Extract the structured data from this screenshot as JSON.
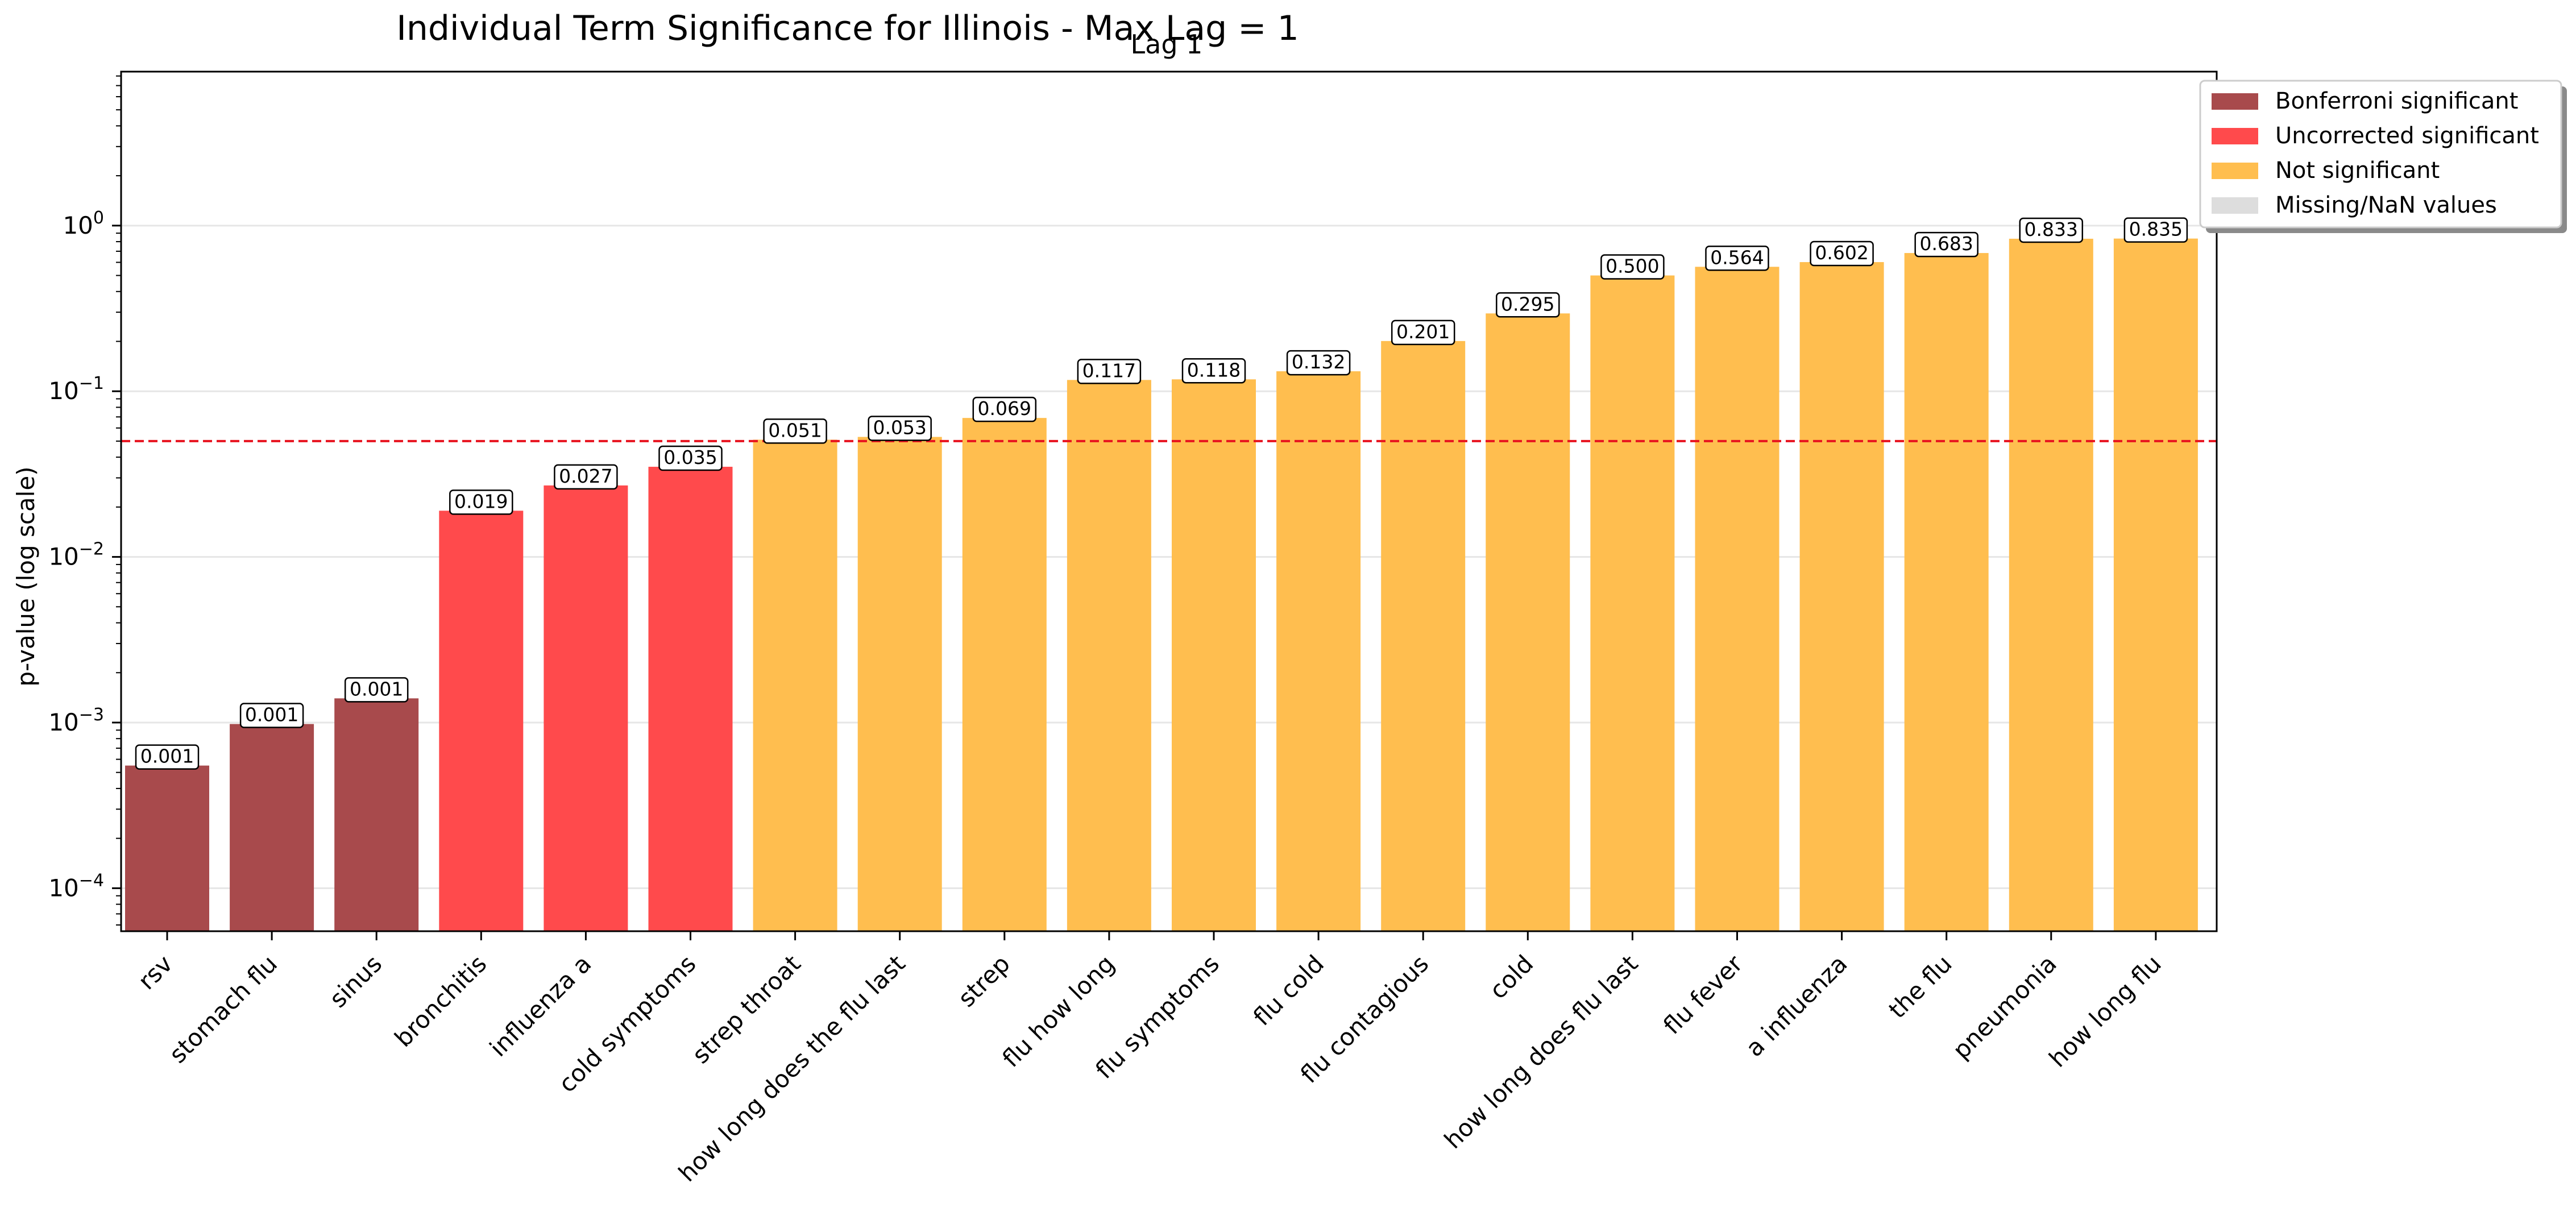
{
  "chart_data": {
    "type": "bar",
    "title": "Individual Term Significance for Illinois - Max Lag = 1",
    "subtitle": "Lag 1",
    "ylabel": "p-value (log scale)",
    "xlabel": "",
    "yscale": "log",
    "ylim": [
      5.5e-05,
      8.5
    ],
    "yticks": [
      {
        "value": 0.0001,
        "base": "10",
        "exp": "−4"
      },
      {
        "value": 0.001,
        "base": "10",
        "exp": "−3"
      },
      {
        "value": 0.01,
        "base": "10",
        "exp": "−2"
      },
      {
        "value": 0.1,
        "base": "10",
        "exp": "−1"
      },
      {
        "value": 1,
        "base": "10",
        "exp": "0"
      }
    ],
    "grid": true,
    "threshold": {
      "value": 0.05,
      "color": "#e8131f",
      "style": "dashed"
    },
    "legend_position": "top-right",
    "legend": [
      {
        "label": "Bonferroni significant",
        "color": "#a84a4c"
      },
      {
        "label": "Uncorrected significant",
        "color": "#ff4a4c"
      },
      {
        "label": "Not significant",
        "color": "#ffbe4f"
      },
      {
        "label": "Missing/NaN values",
        "color": "#dddddd"
      }
    ],
    "categories": [
      "rsv",
      "stomach flu",
      "sinus",
      "bronchitis",
      "influenza a",
      "cold symptoms",
      "strep throat",
      "how long does the flu last",
      "strep",
      "flu how long",
      "flu symptoms",
      "flu cold",
      "flu contagious",
      "cold",
      "how long does flu last",
      "flu fever",
      "a influenza",
      "the flu",
      "pneumonia",
      "how long flu"
    ],
    "values": [
      0.00055,
      0.00098,
      0.0014,
      0.019,
      0.027,
      0.035,
      0.051,
      0.053,
      0.069,
      0.117,
      0.118,
      0.132,
      0.201,
      0.295,
      0.5,
      0.564,
      0.602,
      0.683,
      0.833,
      0.835
    ],
    "data_labels": [
      "0.001",
      "0.001",
      "0.001",
      "0.019",
      "0.027",
      "0.035",
      "0.051",
      "0.053",
      "0.069",
      "0.117",
      "0.118",
      "0.132",
      "0.201",
      "0.295",
      "0.500",
      "0.564",
      "0.602",
      "0.683",
      "0.833",
      "0.835"
    ],
    "status": [
      "bonferroni",
      "bonferroni",
      "bonferroni",
      "uncorrected",
      "uncorrected",
      "uncorrected",
      "not",
      "not",
      "not",
      "not",
      "not",
      "not",
      "not",
      "not",
      "not",
      "not",
      "not",
      "not",
      "not",
      "not"
    ],
    "status_colors": {
      "bonferroni": "#a84a4c",
      "uncorrected": "#ff4a4c",
      "not": "#ffbe4f",
      "missing": "#dddddd"
    }
  }
}
